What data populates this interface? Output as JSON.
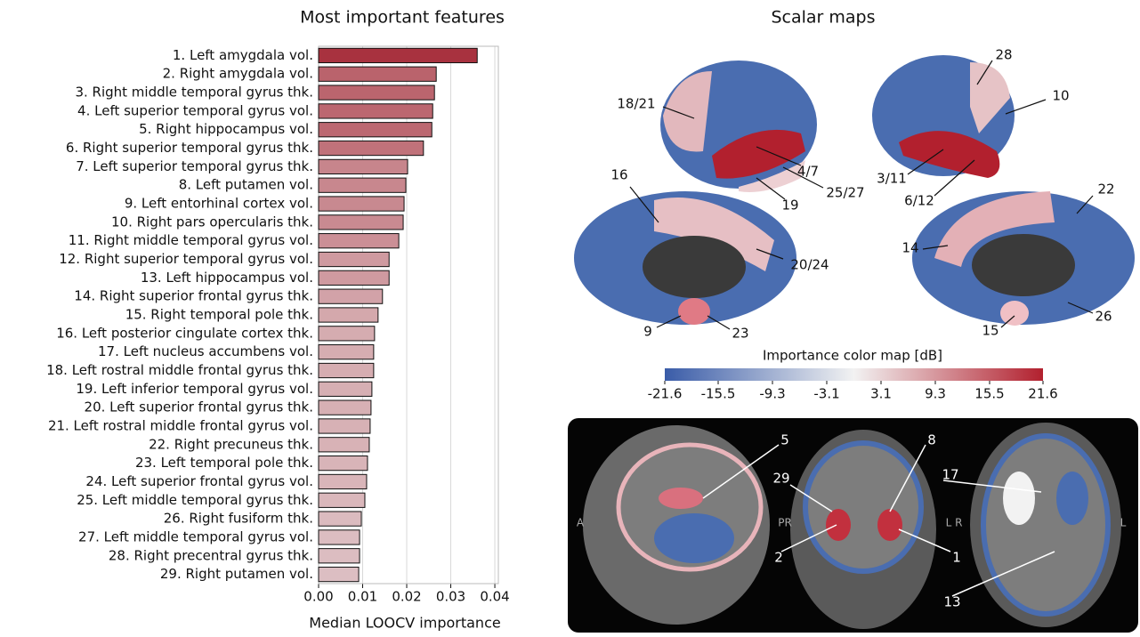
{
  "chart_data": {
    "type": "bar",
    "orientation": "horizontal",
    "title": "Most important features",
    "x_label": "Median LOOCV importance",
    "categories": [
      "1. Left amygdala vol.",
      "2. Right amygdala vol.",
      "3. Right middle temporal gyrus thk.",
      "4. Left superior temporal gyrus vol.",
      "5. Right hippocampus vol.",
      "6. Right superior temporal gyrus thk.",
      "7. Left superior temporal gyrus thk.",
      "8. Left putamen vol.",
      "9. Left entorhinal cortex vol.",
      "10. Right pars opercularis thk.",
      "11. Right middle temporal gyrus vol.",
      "12. Right superior temporal gyrus vol.",
      "13. Left hippocampus vol.",
      "14. Right superior frontal gyrus thk.",
      "15. Right temporal pole thk.",
      "16. Left posterior cingulate cortex thk.",
      "17. Left nucleus accumbens vol.",
      "18. Left rostral middle frontal gyrus thk.",
      "19. Left inferior temporal gyrus vol.",
      "20. Left superior frontal gyrus thk.",
      "21. Left rostral middle frontal gyrus vol.",
      "22. Right precuneus thk.",
      "23. Left temporal pole thk.",
      "24. Left superior frontal gyrus vol.",
      "25. Left middle temporal gyrus thk.",
      "26. Right fusiform thk.",
      "27. Left middle temporal gyrus vol.",
      "28. Right precentral gyrus thk.",
      "29. Right putamen vol."
    ],
    "values": [
      0.036,
      0.0267,
      0.0263,
      0.0259,
      0.0257,
      0.0238,
      0.0202,
      0.0198,
      0.0194,
      0.0192,
      0.0182,
      0.016,
      0.016,
      0.0145,
      0.0135,
      0.0127,
      0.0125,
      0.0125,
      0.0121,
      0.0119,
      0.0117,
      0.0115,
      0.0111,
      0.0109,
      0.0105,
      0.0097,
      0.0093,
      0.0093,
      0.0091
    ],
    "color_range": [
      "#eeeeee",
      "#a8323f"
    ],
    "xlim": [
      0,
      0.0408
    ],
    "xticks": [
      {
        "value": 0,
        "label": "0.00"
      },
      {
        "value": 0.01,
        "label": "0.01"
      },
      {
        "value": 0.02,
        "label": "0.02"
      },
      {
        "value": 0.03,
        "label": "0.03"
      },
      {
        "value": 0.04,
        "label": "0.04"
      }
    ],
    "grid": true
  },
  "scalar_maps": {
    "title": "Scalar maps",
    "labels": [
      "28",
      "10",
      "18/21",
      "4/7",
      "25/27",
      "3/11",
      "19",
      "6/12",
      "16",
      "22",
      "14",
      "20/24",
      "9",
      "23",
      "15",
      "26"
    ],
    "colorbar": {
      "label": "Importance  color map [dB]",
      "lim": [
        -21.6,
        21.6
      ],
      "ticks": [
        -21.6,
        -15.5,
        -9.3,
        -3.1,
        3.1,
        9.3,
        15.5,
        21.6
      ],
      "colors": [
        "#3a5ca8",
        "#f2f2f2",
        "#b2202e"
      ]
    }
  },
  "mri_panel": {
    "labels": [
      "5",
      "8",
      "29",
      "17",
      "2",
      "1",
      "13"
    ],
    "orientation_letters": [
      "A",
      "PR",
      "L R",
      "L"
    ]
  }
}
